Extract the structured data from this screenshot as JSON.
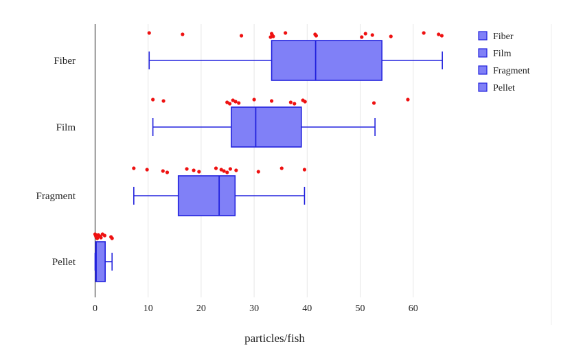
{
  "chart_data": {
    "type": "boxplot",
    "orientation": "horizontal",
    "xlabel": "particles/fish",
    "xlim": [
      0,
      65.5
    ],
    "xticks": [
      0,
      10,
      20,
      30,
      40,
      50,
      60
    ],
    "grid": true,
    "legend_position": "top-right",
    "colors": {
      "box_fill": "#8080f7",
      "box_stroke": "#2222dd",
      "outlier": "#ee1111",
      "grid": "#e6e6e6",
      "axis": "#444444"
    },
    "legend": [
      "Fiber",
      "Film",
      "Fragment",
      "Pellet"
    ],
    "series": [
      {
        "name": "Fiber",
        "whisker_low": 10.2,
        "q1": 33.3,
        "median": 41.6,
        "q3": 54.1,
        "whisker_high": 65.5,
        "points": [
          10.2,
          16.5,
          27.6,
          33.1,
          33.3,
          33.4,
          33.6,
          35.9,
          41.5,
          41.7,
          50.3,
          51.0,
          52.3,
          55.8,
          62.0,
          64.8,
          65.4
        ]
      },
      {
        "name": "Film",
        "whisker_low": 10.9,
        "q1": 25.7,
        "median": 30.3,
        "q3": 38.9,
        "whisker_high": 52.8,
        "points": [
          10.9,
          12.9,
          24.9,
          25.4,
          26.0,
          26.5,
          27.1,
          30.0,
          33.3,
          36.9,
          37.6,
          39.2,
          39.6,
          52.6,
          59.0
        ]
      },
      {
        "name": "Fragment",
        "whisker_low": 7.3,
        "q1": 15.7,
        "median": 23.4,
        "q3": 26.4,
        "whisker_high": 39.5,
        "points": [
          7.3,
          9.8,
          12.8,
          13.6,
          17.3,
          18.6,
          19.6,
          22.8,
          23.8,
          24.3,
          24.9,
          25.5,
          26.6,
          30.8,
          35.2,
          39.5
        ]
      },
      {
        "name": "Pellet",
        "whisker_low": 0.0,
        "q1": 0.1,
        "median": 0.2,
        "q3": 1.9,
        "whisker_high": 3.2,
        "points": [
          0.0,
          0.1,
          0.2,
          0.4,
          0.6,
          0.9,
          1.1,
          1.4,
          1.8,
          3.0,
          3.2
        ]
      }
    ]
  }
}
